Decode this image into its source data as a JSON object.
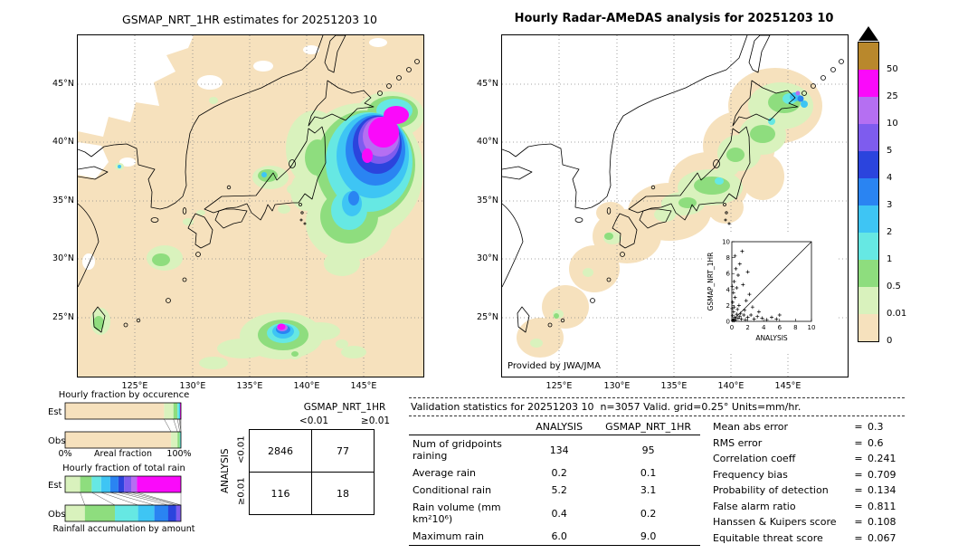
{
  "colorbar": {
    "levels": [
      "0",
      "0.01",
      "0.5",
      "1",
      "2",
      "3",
      "4",
      "5",
      "10",
      "25",
      "50"
    ],
    "colors": [
      "#f6e1bd",
      "#d9f2bd",
      "#8edd7e",
      "#66e8e3",
      "#3ec5f4",
      "#2a84f2",
      "#2b44dd",
      "#7e5cee",
      "#b56ff2",
      "#fa0afa",
      "#b9882c"
    ],
    "overflow_marker_color": "#000000",
    "units": "mm/hr"
  },
  "panels": {
    "left_map": {
      "title": "GSMAP_NRT_1HR estimates for 20251203 10",
      "lon_ticks": [
        "125°E",
        "130°E",
        "135°E",
        "140°E",
        "145°E"
      ],
      "lat_ticks": [
        "45°N",
        "40°N",
        "35°N",
        "30°N",
        "25°N"
      ]
    },
    "right_map": {
      "title": "Hourly Radar-AMeDAS analysis for 20251203 10",
      "credit": "Provided by JWA/JMA",
      "lon_ticks": [
        "125°E",
        "130°E",
        "135°E",
        "140°E",
        "145°E"
      ],
      "lat_ticks": [
        "45°N",
        "40°N",
        "35°N",
        "30°N",
        "25°N"
      ]
    }
  },
  "fractions": {
    "rows": [
      "Est",
      "Obs"
    ],
    "occurrence": {
      "title": "Hourly fraction by occurence",
      "axis_left": "0%",
      "axis_center": "Areal fraction",
      "axis_right": "100%",
      "est": [
        [
          "#f6e1bd",
          85.5
        ],
        [
          "#d9f2bd",
          8
        ],
        [
          "#8edd7e",
          3.5
        ],
        [
          "#66e8e3",
          1.4
        ],
        [
          "#3ec5f4",
          0.8
        ],
        [
          "#fa0afa",
          0.8
        ]
      ],
      "obs": [
        [
          "#f6e1bd",
          91.5
        ],
        [
          "#d9f2bd",
          5.5
        ],
        [
          "#8edd7e",
          2
        ],
        [
          "#66e8e3",
          1
        ]
      ]
    },
    "total_rain": {
      "title": "Hourly fraction of total rain",
      "caption": "Rainfall accumulation by amount",
      "est": [
        [
          "#d9f2bd",
          13
        ],
        [
          "#8edd7e",
          10
        ],
        [
          "#66e8e3",
          8
        ],
        [
          "#3ec5f4",
          8
        ],
        [
          "#2a84f2",
          7
        ],
        [
          "#2b44dd",
          5
        ],
        [
          "#7e5cee",
          6
        ],
        [
          "#b56ff2",
          5
        ],
        [
          "#fa0afa",
          38
        ]
      ],
      "obs": [
        [
          "#d9f2bd",
          17
        ],
        [
          "#8edd7e",
          26
        ],
        [
          "#66e8e3",
          20
        ],
        [
          "#3ec5f4",
          14
        ],
        [
          "#2a84f2",
          12
        ],
        [
          "#2b44dd",
          7
        ],
        [
          "#7e5cee",
          4
        ]
      ]
    }
  },
  "contingency": {
    "col_group": "GSMAP_NRT_1HR",
    "row_group": "ANALYSIS",
    "col_labels": [
      "<0.01",
      "≥0.01"
    ],
    "row_labels": [
      "<0.01",
      "≥0.01"
    ],
    "cells": [
      [
        "2846",
        "77"
      ],
      [
        "116",
        "18"
      ]
    ]
  },
  "stats": {
    "title": "Validation statistics for 20251203 10  n=3057 Valid. grid=0.25° Units=mm/hr.",
    "columns": [
      "ANALYSIS",
      "GSMAP_NRT_1HR"
    ],
    "rows": [
      [
        "Num of gridpoints raining",
        "134",
        "95"
      ],
      [
        "Average rain",
        "0.2",
        "0.1"
      ],
      [
        "Conditional rain",
        "5.2",
        "3.1"
      ],
      [
        "Rain volume (mm km²10⁶)",
        "0.4",
        "0.2"
      ],
      [
        "Maximum rain",
        "6.0",
        "9.0"
      ]
    ]
  },
  "metrics": [
    {
      "label": "Mean abs error",
      "value": "0.3"
    },
    {
      "label": "RMS error",
      "value": "0.6"
    },
    {
      "label": "Correlation coeff",
      "value": "0.241"
    },
    {
      "label": "Frequency bias",
      "value": "0.709"
    },
    {
      "label": "Probability of detection",
      "value": "0.134"
    },
    {
      "label": "False alarm ratio",
      "value": "0.811"
    },
    {
      "label": "Hanssen & Kuipers score",
      "value": "0.108"
    },
    {
      "label": "Equitable threat score",
      "value": "0.067"
    }
  ],
  "inset": {
    "xlabel": "ANALYSIS",
    "ylabel": "GSMAP_NRT_1HR",
    "ticks": [
      0,
      2,
      4,
      6,
      8,
      10
    ],
    "xlim": [
      0,
      10
    ],
    "ylim": [
      0,
      10
    ],
    "points": [
      [
        0.1,
        0.1
      ],
      [
        0.2,
        0.3
      ],
      [
        0.3,
        0.1
      ],
      [
        0.4,
        0.5
      ],
      [
        0.5,
        0.2
      ],
      [
        0.6,
        0.9
      ],
      [
        0.8,
        0.4
      ],
      [
        1.0,
        0.6
      ],
      [
        1.2,
        0.3
      ],
      [
        1.5,
        0.8
      ],
      [
        0.1,
        0.7
      ],
      [
        0.2,
        1.2
      ],
      [
        0.3,
        1.8
      ],
      [
        0.1,
        2.4
      ],
      [
        0.4,
        3.0
      ],
      [
        0.2,
        3.6
      ],
      [
        0.6,
        4.2
      ],
      [
        0.3,
        5.0
      ],
      [
        0.8,
        5.8
      ],
      [
        0.5,
        6.6
      ],
      [
        1.0,
        7.2
      ],
      [
        0.4,
        8.2
      ],
      [
        1.3,
        8.8
      ],
      [
        0.9,
        2.0
      ],
      [
        1.6,
        1.4
      ],
      [
        2.0,
        0.5
      ],
      [
        2.4,
        0.8
      ],
      [
        2.8,
        0.3
      ],
      [
        3.2,
        0.6
      ],
      [
        3.8,
        0.4
      ],
      [
        4.4,
        0.2
      ],
      [
        5.0,
        0.5
      ],
      [
        5.6,
        0.3
      ],
      [
        6.0,
        0.8
      ],
      [
        1.8,
        2.6
      ],
      [
        2.2,
        3.4
      ],
      [
        1.4,
        4.6
      ],
      [
        2.6,
        1.8
      ],
      [
        0.7,
        1.5
      ],
      [
        1.1,
        1.0
      ],
      [
        3.4,
        1.2
      ],
      [
        0.05,
        4.4
      ],
      [
        0.05,
        1.6
      ],
      [
        2.0,
        6.2
      ],
      [
        1.7,
        0.2
      ]
    ]
  },
  "chart_data": [
    {
      "type": "heatmap",
      "title": "GSMAP_NRT_1HR estimates for 20251203 10",
      "x_ticks": [
        "125°E",
        "130°E",
        "135°E",
        "140°E",
        "145°E"
      ],
      "y_ticks": [
        "45°N",
        "40°N",
        "35°N",
        "30°N",
        "25°N"
      ],
      "units": "mm/hr",
      "levels": [
        0,
        0.01,
        0.5,
        1,
        2,
        3,
        4,
        5,
        10,
        25,
        50
      ]
    },
    {
      "type": "heatmap",
      "title": "Hourly Radar-AMeDAS analysis for 20251203 10",
      "x_ticks": [
        "125°E",
        "130°E",
        "135°E",
        "140°E",
        "145°E"
      ],
      "y_ticks": [
        "45°N",
        "40°N",
        "35°N",
        "30°N",
        "25°N"
      ],
      "units": "mm/hr",
      "levels": [
        0,
        0.01,
        0.5,
        1,
        2,
        3,
        4,
        5,
        10,
        25,
        50
      ],
      "credit": "Provided by JWA/JMA"
    },
    {
      "type": "scatter",
      "title": "GSMAP_NRT_1HR vs ANALYSIS (inset)",
      "xlabel": "ANALYSIS",
      "ylabel": "GSMAP_NRT_1HR",
      "xlim": [
        0,
        10
      ],
      "ylim": [
        0,
        10
      ],
      "diagonal": true,
      "points": [
        [
          0.1,
          0.1
        ],
        [
          0.2,
          0.3
        ],
        [
          0.3,
          0.1
        ],
        [
          0.4,
          0.5
        ],
        [
          0.5,
          0.2
        ],
        [
          0.6,
          0.9
        ],
        [
          0.8,
          0.4
        ],
        [
          1.0,
          0.6
        ],
        [
          1.2,
          0.3
        ],
        [
          1.5,
          0.8
        ],
        [
          0.1,
          0.7
        ],
        [
          0.2,
          1.2
        ],
        [
          0.3,
          1.8
        ],
        [
          0.1,
          2.4
        ],
        [
          0.4,
          3.0
        ],
        [
          0.2,
          3.6
        ],
        [
          0.6,
          4.2
        ],
        [
          0.3,
          5.0
        ],
        [
          0.8,
          5.8
        ],
        [
          0.5,
          6.6
        ],
        [
          1.0,
          7.2
        ],
        [
          0.4,
          8.2
        ],
        [
          1.3,
          8.8
        ],
        [
          0.9,
          2.0
        ],
        [
          1.6,
          1.4
        ],
        [
          2.0,
          0.5
        ],
        [
          2.4,
          0.8
        ],
        [
          2.8,
          0.3
        ],
        [
          3.2,
          0.6
        ],
        [
          3.8,
          0.4
        ],
        [
          4.4,
          0.2
        ],
        [
          5.0,
          0.5
        ],
        [
          5.6,
          0.3
        ],
        [
          6.0,
          0.8
        ],
        [
          1.8,
          2.6
        ],
        [
          2.2,
          3.4
        ],
        [
          1.4,
          4.6
        ],
        [
          2.6,
          1.8
        ],
        [
          0.7,
          1.5
        ],
        [
          1.1,
          1.0
        ],
        [
          3.4,
          1.2
        ],
        [
          0.05,
          4.4
        ],
        [
          0.05,
          1.6
        ],
        [
          2.0,
          6.2
        ],
        [
          1.7,
          0.2
        ]
      ]
    },
    {
      "type": "table",
      "title": "Contingency table (number of gridpoints)",
      "col_group": "GSMAP_NRT_1HR",
      "row_group": "ANALYSIS",
      "columns": [
        "<0.01",
        "≥0.01"
      ],
      "row_labels": [
        "<0.01",
        "≥0.01"
      ],
      "values": [
        [
          2846,
          77
        ],
        [
          116,
          18
        ]
      ]
    },
    {
      "type": "table",
      "title": "Validation statistics for 20251203 10 n=3057 Valid. grid=0.25° Units=mm/hr.",
      "columns": [
        "",
        "ANALYSIS",
        "GSMAP_NRT_1HR"
      ],
      "rows": [
        [
          "Num of gridpoints raining",
          134,
          95
        ],
        [
          "Average rain",
          0.2,
          0.1
        ],
        [
          "Conditional rain",
          5.2,
          3.1
        ],
        [
          "Rain volume (mm km²10⁶)",
          0.4,
          0.2
        ],
        [
          "Maximum rain",
          6.0,
          9.0
        ]
      ]
    },
    {
      "type": "table",
      "title": "Verification scores",
      "rows": [
        [
          "Mean abs error",
          0.3
        ],
        [
          "RMS error",
          0.6
        ],
        [
          "Correlation coeff",
          0.241
        ],
        [
          "Frequency bias",
          0.709
        ],
        [
          "Probability of detection",
          0.134
        ],
        [
          "False alarm ratio",
          0.811
        ],
        [
          "Hanssen & Kuipers score",
          0.108
        ],
        [
          "Equitable threat score",
          0.067
        ]
      ]
    },
    {
      "type": "bar",
      "title": "Hourly fraction by occurence (Areal fraction, % approx.)",
      "stacked": true,
      "orientation": "horizontal",
      "categories": [
        "Est",
        "Obs"
      ],
      "series_est": [
        85.5,
        8,
        3.5,
        1.4,
        0.8,
        0.8
      ],
      "series_obs": [
        91.5,
        5.5,
        2,
        1
      ]
    },
    {
      "type": "bar",
      "title": "Hourly fraction of total rain (Rainfall accumulation by amount, % approx.)",
      "stacked": true,
      "orientation": "horizontal",
      "categories": [
        "Est",
        "Obs"
      ],
      "series_est": [
        13,
        10,
        8,
        8,
        7,
        5,
        6,
        5,
        38
      ],
      "series_obs": [
        17,
        26,
        20,
        14,
        12,
        7,
        4
      ]
    }
  ]
}
